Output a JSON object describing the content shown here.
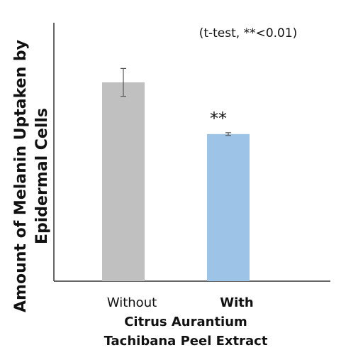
{
  "chart_data": {
    "type": "bar",
    "ylabel_line1": "Amount of Melanin Uptaken by",
    "ylabel_line2": "Epidermal Cells",
    "annotation": "(t-test, **<0.01)",
    "categories": [
      "Without",
      "With"
    ],
    "group_label_line1": "Citrus Aurantium",
    "group_label_line2": "Tachibana Peel Extract",
    "values": [
      100,
      74
    ],
    "errors": [
      7,
      0.7
    ],
    "colors": [
      "#c0c0c0",
      "#9dc3e6"
    ],
    "significance": [
      "",
      "**"
    ],
    "ylim": [
      0,
      130
    ],
    "grid": false,
    "legend": "none"
  }
}
